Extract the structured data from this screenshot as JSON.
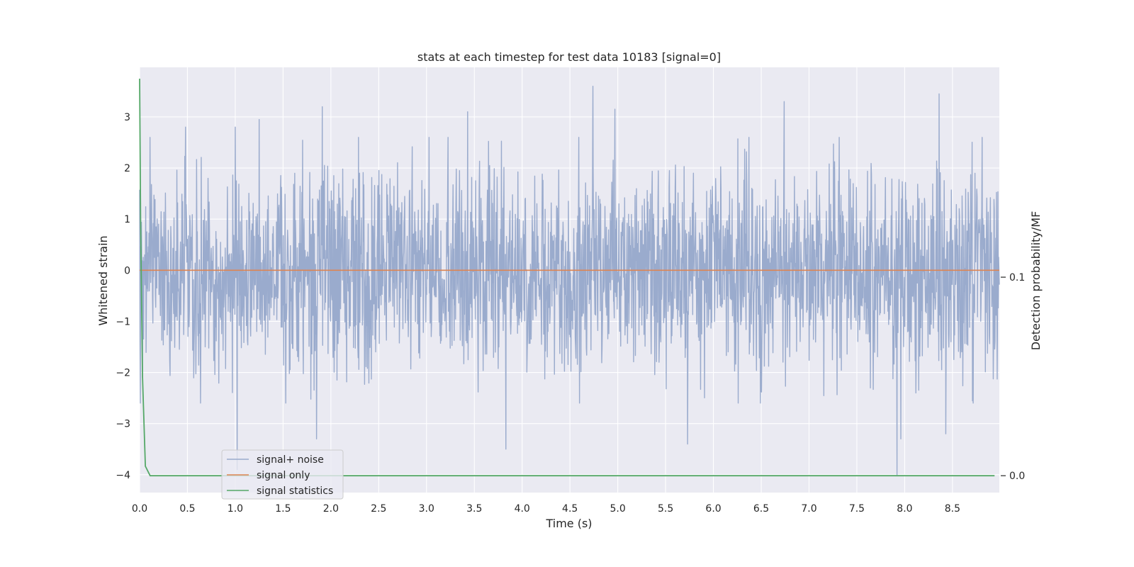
{
  "chart_data": {
    "type": "line",
    "title": "stats at each timestep for test data 10183 [signal=0]",
    "xlabel": "Time (s)",
    "ylabel": "Whitened strain",
    "y2label": "Detection probability/MF",
    "xlim": [
      0.0,
      8.99
    ],
    "ylim": [
      -4.35,
      3.97
    ],
    "y2lim": [
      -0.0085,
      0.2057
    ],
    "x_ticks": [
      0.0,
      0.5,
      1.0,
      1.5,
      2.0,
      2.5,
      3.0,
      3.5,
      4.0,
      4.5,
      5.0,
      5.5,
      6.0,
      6.5,
      7.0,
      7.5,
      8.0,
      8.5
    ],
    "x_tick_labels": [
      "0.0",
      "0.5",
      "1.0",
      "1.5",
      "2.0",
      "2.5",
      "3.0",
      "3.5",
      "4.0",
      "4.5",
      "5.0",
      "5.5",
      "6.0",
      "6.5",
      "7.0",
      "7.5",
      "8.0",
      "8.5"
    ],
    "y_ticks": [
      -4,
      -3,
      -2,
      -1,
      0,
      1,
      2,
      3
    ],
    "y_tick_labels": [
      "−4",
      "−3",
      "−2",
      "−1",
      "0",
      "1",
      "2",
      "3"
    ],
    "y2_ticks": [
      0.0,
      0.1
    ],
    "y2_tick_labels": [
      "0.0",
      "0.1"
    ],
    "grid": true,
    "legend_position": "lower-left",
    "series": [
      {
        "name": "signal+ noise",
        "color": "#9aabcd",
        "axis": "left",
        "kind": "noise",
        "x_range": [
          0.0,
          8.99
        ],
        "typical_range": [
          -1.6,
          1.6
        ],
        "notable_peaks": [
          {
            "x": 0.03,
            "y": -2.1
          },
          {
            "x": 0.48,
            "y": 2.8
          },
          {
            "x": 1.0,
            "y": 2.8
          },
          {
            "x": 1.02,
            "y": -3.9
          },
          {
            "x": 1.25,
            "y": 2.95
          },
          {
            "x": 1.85,
            "y": -3.3
          },
          {
            "x": 1.91,
            "y": 3.2
          },
          {
            "x": 3.43,
            "y": 3.1
          },
          {
            "x": 3.83,
            "y": -3.5
          },
          {
            "x": 4.74,
            "y": 3.6
          },
          {
            "x": 4.97,
            "y": 3.15
          },
          {
            "x": 5.73,
            "y": -3.4
          },
          {
            "x": 6.74,
            "y": 3.3
          },
          {
            "x": 7.92,
            "y": -4.0
          },
          {
            "x": 7.96,
            "y": -3.3
          },
          {
            "x": 8.36,
            "y": 3.45
          },
          {
            "x": 8.43,
            "y": -3.2
          }
        ]
      },
      {
        "name": "signal only",
        "color": "#dd8452",
        "axis": "left",
        "x": [
          0.0,
          8.99
        ],
        "y": [
          0.0,
          0.0
        ]
      },
      {
        "name": "signal statistics",
        "color": "#55a868",
        "axis": "right",
        "x": [
          0.0,
          0.01,
          0.03,
          0.06,
          0.11,
          0.5,
          1.0,
          2.0,
          3.0,
          4.0,
          5.0,
          6.0,
          7.0,
          8.0,
          8.94
        ],
        "y": [
          0.2,
          0.13,
          0.05,
          0.0048,
          0.0,
          0.0,
          0.0,
          0.0,
          0.0,
          0.0,
          0.0,
          0.0,
          0.0,
          0.0,
          0.0
        ]
      }
    ]
  }
}
